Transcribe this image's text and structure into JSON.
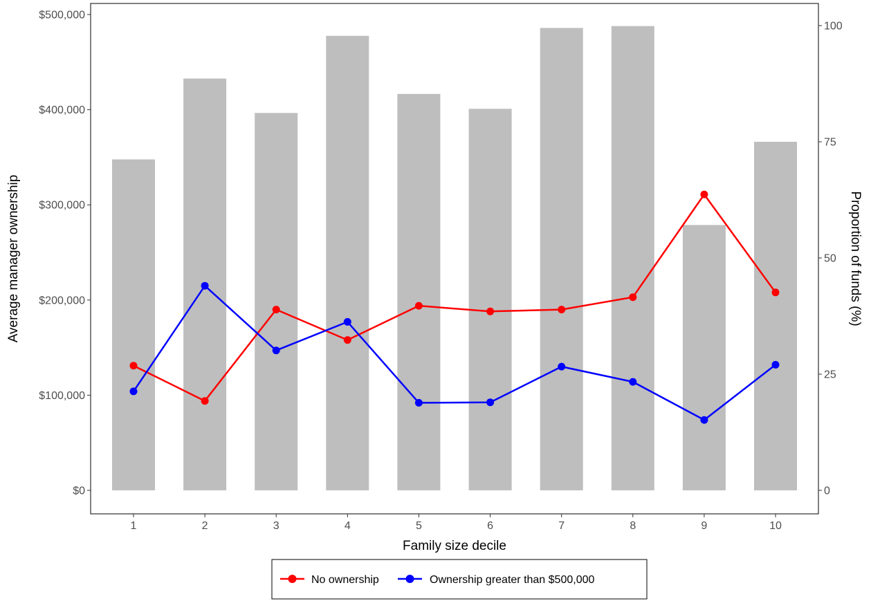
{
  "chart_data": {
    "type": "bar",
    "title": "",
    "xlabel": "Family size decile",
    "ylabel": "Average manager ownership",
    "y2label": "Proportion of funds (%)",
    "categories": [
      "1",
      "2",
      "3",
      "4",
      "5",
      "6",
      "7",
      "8",
      "9",
      "10"
    ],
    "ylim": [
      0,
      500000
    ],
    "y_ticks": [
      0,
      100000,
      200000,
      300000,
      400000,
      500000
    ],
    "y_tick_labels": [
      "$0",
      "$100,000",
      "$200,000",
      "$300,000",
      "$400,000",
      "$500,000"
    ],
    "y2lim": [
      0,
      100
    ],
    "y2_ticks": [
      0,
      25,
      50,
      75,
      100
    ],
    "y2_tick_labels": [
      "0",
      "25",
      "50",
      "75",
      "100"
    ],
    "bars": {
      "axis": "right",
      "color": "#bebebe",
      "values": [
        71.2,
        88.6,
        81.2,
        97.8,
        85.3,
        82.1,
        99.5,
        99.9,
        57.1,
        75.0
      ]
    },
    "series": [
      {
        "name": "No ownership",
        "color": "#ff0000",
        "axis": "left",
        "values": [
          131000,
          94000,
          190000,
          158000,
          194000,
          188000,
          190000,
          203000,
          311000,
          208000
        ]
      },
      {
        "name": "Ownership greater than $500,000",
        "color": "#0000ff",
        "axis": "left",
        "values": [
          104000,
          215000,
          147000,
          177000,
          92000,
          92500,
          130000,
          114000,
          74000,
          132000
        ]
      }
    ],
    "grid": false,
    "legend_position": "bottom"
  }
}
